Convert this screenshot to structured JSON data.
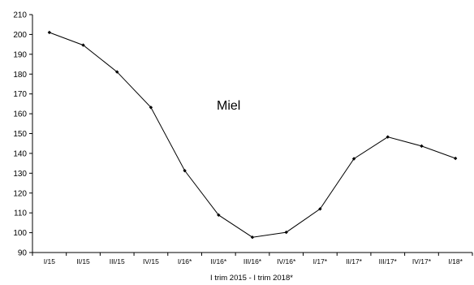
{
  "chart_data": {
    "type": "line",
    "title": "",
    "annotation": "Miel",
    "xlabel": "I trim 2015 - I trim 2018*",
    "ylabel": "",
    "ylim": [
      90,
      210
    ],
    "yticks": [
      90,
      100,
      110,
      120,
      130,
      140,
      150,
      160,
      170,
      180,
      190,
      200,
      210
    ],
    "categories": [
      "I/15",
      "II/15",
      "III/15",
      "IV/15",
      "I/16*",
      "II/16*",
      "III/16*",
      "IV/16*",
      "I/17*",
      "II/17*",
      "III/17*",
      "IV/17*",
      "I/18*"
    ],
    "series": [
      {
        "values": [
          201,
          194.6,
          181.1,
          163.2,
          131.3,
          108.9,
          97.7,
          100.2,
          112,
          137.3,
          148.3,
          143.7,
          137.5
        ],
        "color": "#000000"
      }
    ],
    "grid": false,
    "legend": "none"
  }
}
